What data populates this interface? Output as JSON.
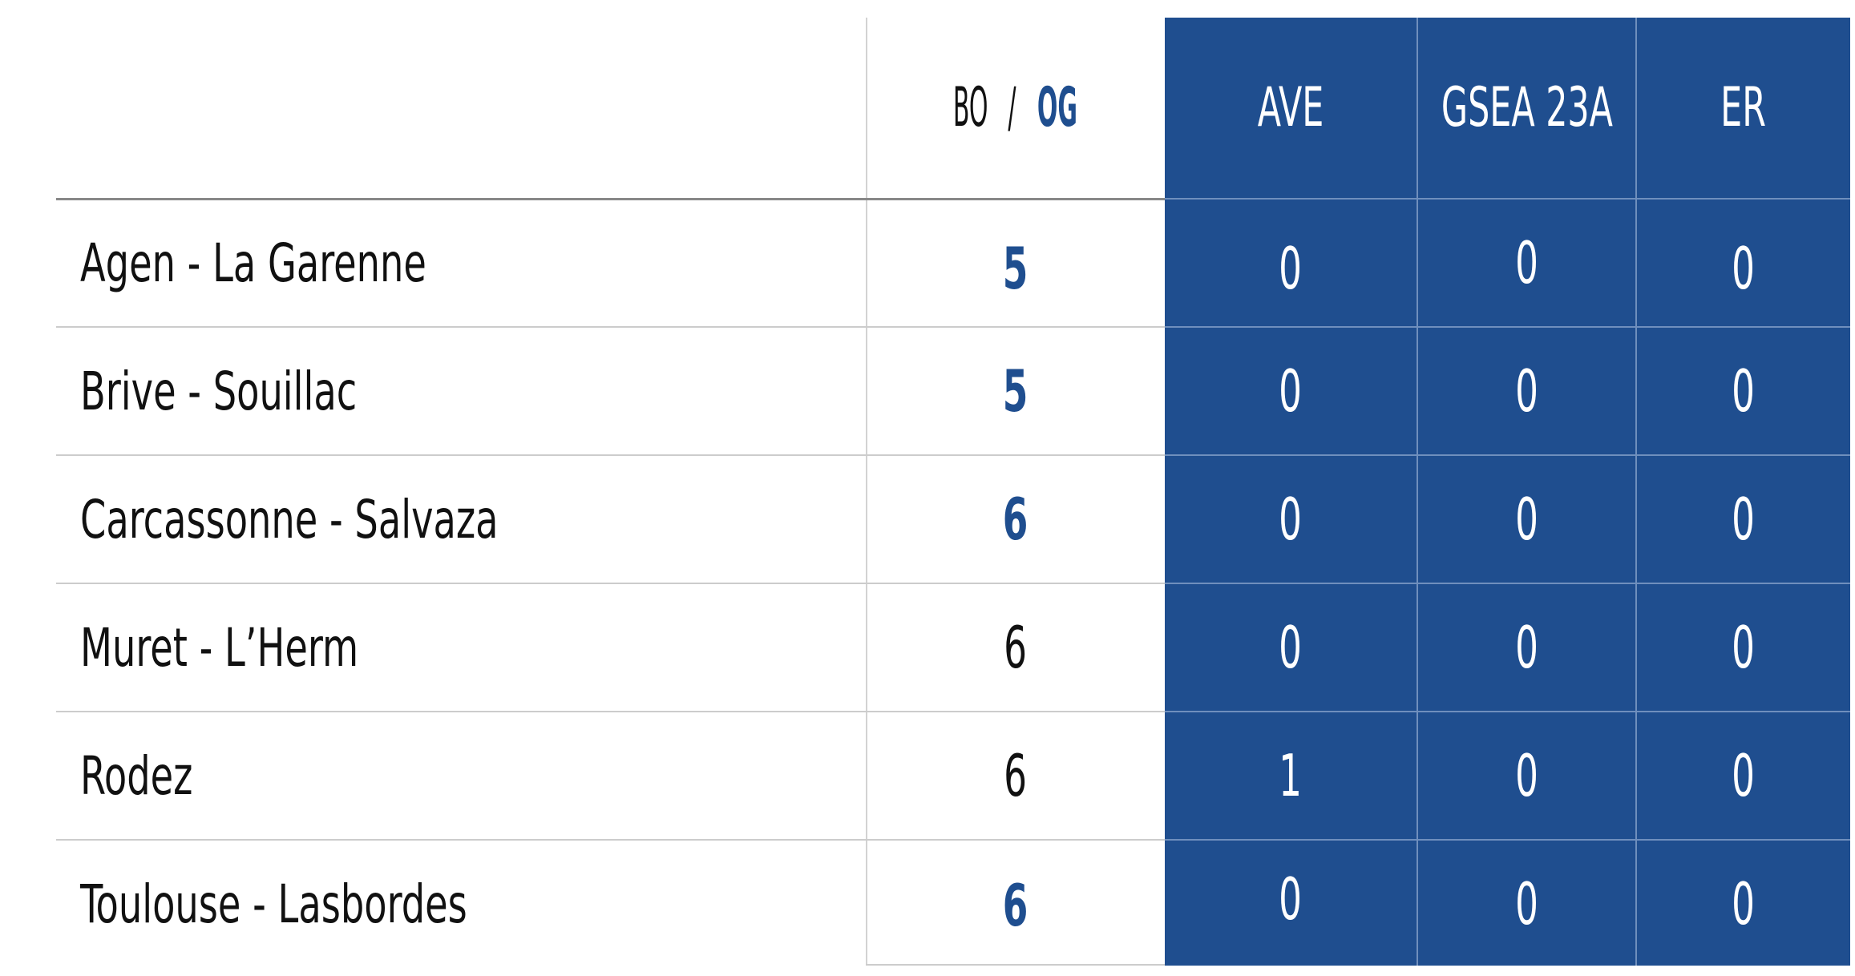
{
  "header": {
    "bo_label": "BO",
    "separator": "/",
    "og_label": "OG",
    "ave": "AVE",
    "gsea": "GSEA 23A",
    "er": "ER"
  },
  "rows": [
    {
      "name": "Agen - La Garenne",
      "bo_og": "5",
      "ave": "0",
      "gsea": "0",
      "er": "0"
    },
    {
      "name": "Brive - Souillac",
      "bo_og": "5",
      "ave": "0",
      "gsea": "0",
      "er": "0"
    },
    {
      "name": "Carcassonne - Salvaza",
      "bo_og": "6",
      "ave": "0",
      "gsea": "0",
      "er": "0"
    },
    {
      "name": "Muret - L’Herm",
      "bo_og": "6",
      "ave": "0",
      "gsea": "0",
      "er": "0"
    },
    {
      "name": "Rodez",
      "bo_og": "6",
      "ave": "1",
      "gsea": "0",
      "er": "0"
    },
    {
      "name": "Toulouse - Lasbordes",
      "bo_og": "6",
      "ave": "0",
      "gsea": "0",
      "er": "0"
    }
  ],
  "colors": {
    "accent_blue": "#1f4e8f",
    "text": "#111111",
    "panel_text": "#ffffff"
  }
}
